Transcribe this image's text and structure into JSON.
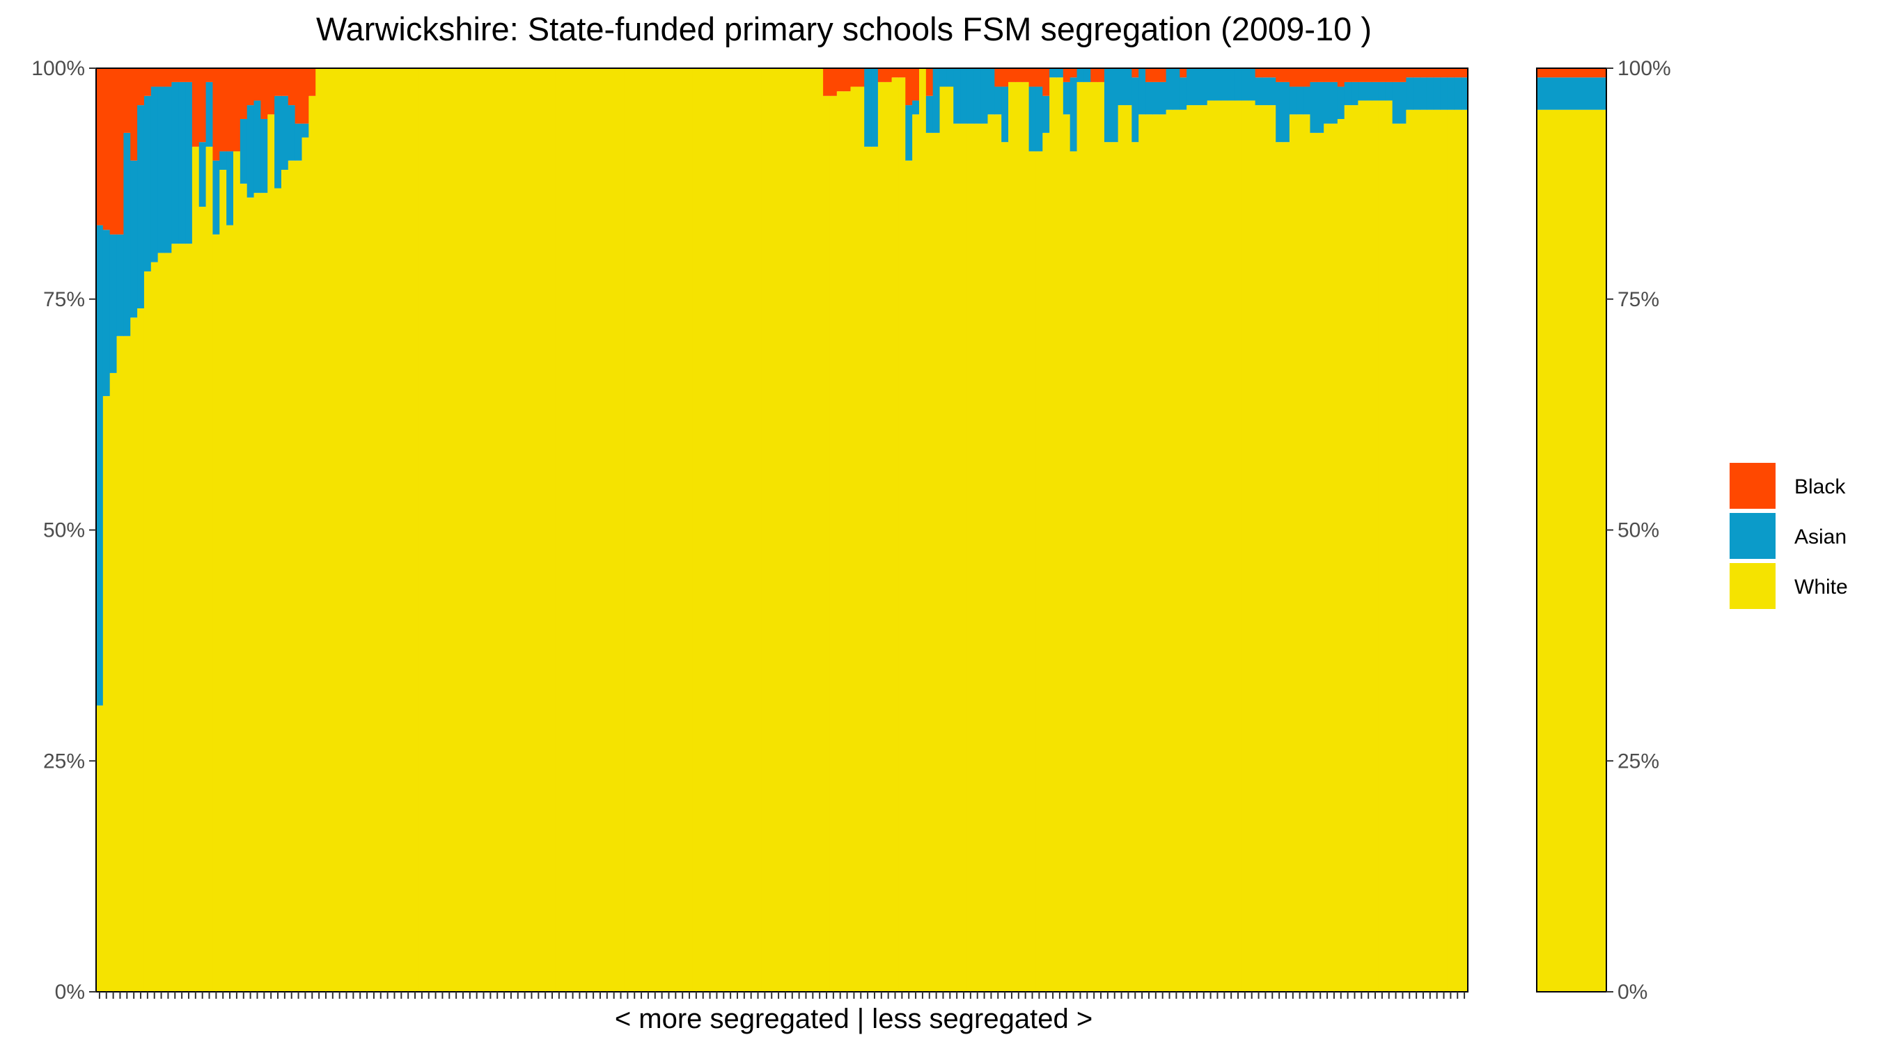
{
  "chart_data": {
    "type": "bar",
    "stacked": true,
    "title": "Warwickshire: State-funded primary schools FSM segregation (2009-10 )",
    "xlabel": "< more segregated | less segregated >",
    "ylabel": "",
    "ylim": [
      0,
      1
    ],
    "y_ticks": [
      "0%",
      "25%",
      "50%",
      "75%",
      "100%"
    ],
    "legend": {
      "position": "right",
      "entries": [
        "Black",
        "Asian",
        "White"
      ]
    },
    "colors": {
      "White": "#f5e300",
      "Asian": "#0b9bc9",
      "Black": "#ff4800",
      "background": "#ffffff",
      "frame": "#000000"
    },
    "series_order_bottom_to_top": [
      "White",
      "Asian",
      "Black"
    ],
    "schools_shown": 200,
    "schools_white_share": [
      0.31,
      0.645,
      0.67,
      0.71,
      0.71,
      0.73,
      0.74,
      0.78,
      0.79,
      0.8,
      0.8,
      0.81,
      0.81,
      0.81,
      0.915,
      0.85,
      0.915,
      0.82,
      0.89,
      0.83,
      0.91,
      0.875,
      0.86,
      0.865,
      0.865,
      0.95,
      0.87,
      0.89,
      0.9,
      0.9,
      0.925,
      0.97,
      1,
      1,
      1,
      1,
      1,
      1,
      1,
      1,
      1,
      1,
      1,
      1,
      1,
      1,
      1,
      1,
      1,
      1,
      1,
      1,
      1,
      1,
      1,
      1,
      1,
      1,
      1,
      1,
      1,
      1,
      1,
      1,
      1,
      1,
      1,
      1,
      1,
      1,
      1,
      1,
      1,
      1,
      1,
      1,
      1,
      1,
      1,
      1,
      1,
      1,
      1,
      1,
      1,
      1,
      1,
      1,
      1,
      1,
      1,
      1,
      1,
      1,
      1,
      1,
      1,
      1,
      1,
      1,
      1,
      1,
      1,
      1,
      1,
      1,
      0.97,
      0.97,
      0.975,
      0.975,
      0.98,
      0.98,
      0.915,
      0.915,
      0.985,
      0.985,
      0.99,
      0.99,
      0.9,
      0.95,
      1,
      0.93,
      0.93,
      0.98,
      0.98,
      0.94,
      0.94,
      0.94,
      0.94,
      0.94,
      0.95,
      0.95,
      0.92,
      0.985,
      0.985,
      0.985,
      0.91,
      0.91,
      0.93,
      0.99,
      0.99,
      0.95,
      0.91,
      0.985,
      0.985,
      0.985,
      0.985,
      0.92,
      0.92,
      0.96,
      0.96,
      0.92,
      0.95,
      0.95,
      0.95,
      0.95,
      0.955,
      0.955,
      0.955,
      0.96,
      0.96,
      0.96,
      0.965,
      0.965,
      0.965,
      0.965,
      0.965,
      0.965,
      0.965,
      0.96,
      0.96,
      0.96,
      0.92,
      0.92,
      0.95,
      0.95,
      0.95,
      0.93,
      0.93,
      0.94,
      0.94,
      0.945,
      0.96,
      0.96,
      0.965,
      0.965,
      0.965,
      0.965,
      0.965,
      0.94,
      0.94,
      0.955,
      0.955,
      0.955,
      0.955,
      0.955,
      0.955,
      0.955,
      0.955,
      0.955
    ],
    "schools_asian_share": [
      0.52,
      0.18,
      0.15,
      0.11,
      0.22,
      0.17,
      0.22,
      0.19,
      0.19,
      0.18,
      0.18,
      0.175,
      0.175,
      0.175,
      0.0,
      0.07,
      0.07,
      0.08,
      0.02,
      0.08,
      0.0,
      0.07,
      0.1,
      0.1,
      0.08,
      0.0,
      0.1,
      0.08,
      0.06,
      0.04,
      0.015,
      0.0,
      0,
      0,
      0,
      0,
      0,
      0,
      0,
      0,
      0,
      0,
      0,
      0,
      0,
      0,
      0,
      0,
      0,
      0,
      0,
      0,
      0,
      0,
      0,
      0,
      0,
      0,
      0,
      0,
      0,
      0,
      0,
      0,
      0,
      0,
      0,
      0,
      0,
      0,
      0,
      0,
      0,
      0,
      0,
      0,
      0,
      0,
      0,
      0,
      0,
      0,
      0,
      0,
      0,
      0,
      0,
      0,
      0,
      0,
      0,
      0,
      0,
      0,
      0,
      0,
      0,
      0,
      0,
      0,
      0,
      0,
      0,
      0,
      0,
      0,
      0.0,
      0.0,
      0.0,
      0.0,
      0.0,
      0.0,
      0.085,
      0.085,
      0.0,
      0.0,
      0.0,
      0.0,
      0.06,
      0.015,
      0.0,
      0.04,
      0.07,
      0.02,
      0.02,
      0.06,
      0.06,
      0.06,
      0.06,
      0.06,
      0.05,
      0.03,
      0.06,
      0.0,
      0.0,
      0.0,
      0.07,
      0.07,
      0.04,
      0.01,
      0.01,
      0.035,
      0.08,
      0.015,
      0.015,
      0.0,
      0.0,
      0.08,
      0.08,
      0.04,
      0.04,
      0.07,
      0.05,
      0.035,
      0.035,
      0.035,
      0.045,
      0.045,
      0.035,
      0.04,
      0.04,
      0.04,
      0.035,
      0.035,
      0.035,
      0.035,
      0.035,
      0.035,
      0.035,
      0.03,
      0.03,
      0.03,
      0.065,
      0.065,
      0.03,
      0.03,
      0.03,
      0.055,
      0.055,
      0.045,
      0.045,
      0.035,
      0.025,
      0.025,
      0.02,
      0.02,
      0.02,
      0.02,
      0.02,
      0.045,
      0.045,
      0.035,
      0.035,
      0.035,
      0.035,
      0.035,
      0.035,
      0.035,
      0.035,
      0.035
    ],
    "overall": {
      "White": 0.955,
      "Asian": 0.035,
      "Black": 0.01
    }
  }
}
